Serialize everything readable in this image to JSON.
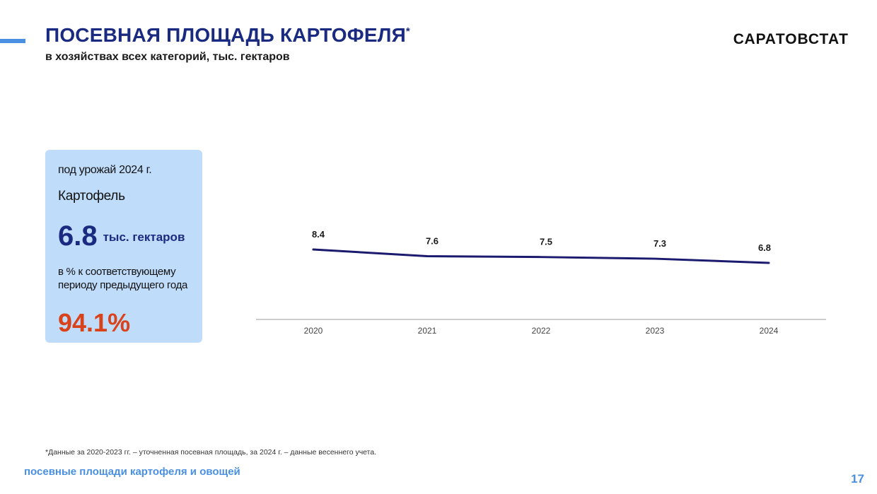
{
  "header": {
    "title": "ПОСЕВНАЯ ПЛОЩАДЬ КАРТОФЕЛЯ",
    "title_mark": "*",
    "subtitle": "в хозяйствах всех категорий, тыс. гектаров",
    "brand": "САРАТОВСТАТ"
  },
  "card": {
    "harvest_label": "под урожай 2024 г.",
    "crop_name": "Картофель",
    "value": "6.8",
    "unit": "тыс. гектаров",
    "comparison_note": "в % к соответствующему периоду предыдущего года",
    "percent": "94.1%"
  },
  "chart_data": {
    "type": "line",
    "x": [
      "2020",
      "2021",
      "2022",
      "2023",
      "2024"
    ],
    "series": [
      {
        "values": [
          8.4,
          7.6,
          7.5,
          7.3,
          6.8
        ]
      }
    ],
    "data_labels": [
      "8.4",
      "7.6",
      "7.5",
      "7.3",
      "6.8"
    ],
    "title": "",
    "xlabel": "",
    "ylabel": "",
    "grid": false,
    "colors": {
      "line": "#1a1a6e",
      "axis": "#bbbbbb"
    }
  },
  "footer": {
    "footnote": "*Данные за 2020-2023 гг. – уточненная посевная площадь, за 2024 г. – данные весеннего учета.",
    "caption": "посевные площади картофеля и овощей",
    "page_number": "17"
  },
  "colors": {
    "accent": "#4a90e2",
    "title": "#1a2a80",
    "card_bg": "#bfdcfb",
    "highlight": "#d9431c"
  }
}
